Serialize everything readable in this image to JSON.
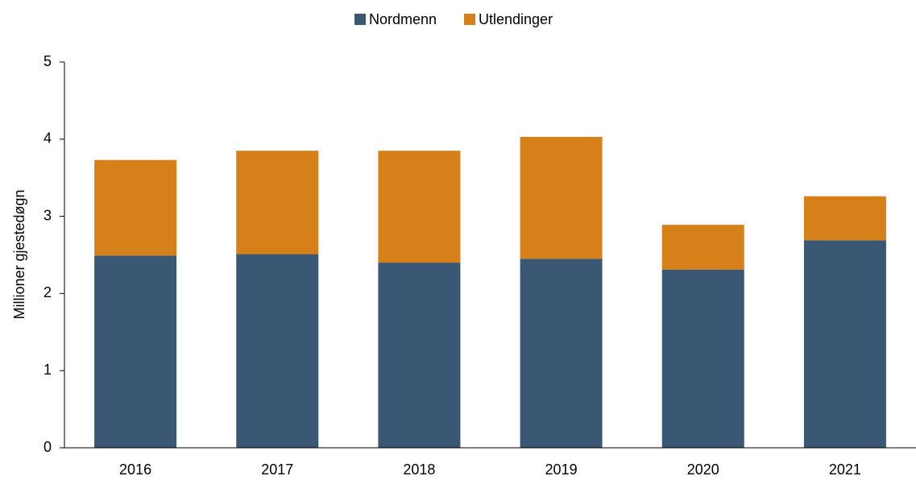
{
  "chart_data": {
    "type": "stacked_bar",
    "categories": [
      "2016",
      "2017",
      "2018",
      "2019",
      "2020",
      "2021"
    ],
    "series": [
      {
        "name": "Nordmenn",
        "color": "#3a5874",
        "values": [
          2.49,
          2.51,
          2.4,
          2.45,
          2.31,
          2.69
        ]
      },
      {
        "name": "Utlendinger",
        "color": "#d6801a",
        "values": [
          1.24,
          1.34,
          1.45,
          1.58,
          0.58,
          0.57
        ]
      }
    ],
    "y_label": "Millioner gjestedøgn",
    "ylim": [
      0,
      5
    ],
    "yticks": [
      0,
      1,
      2,
      3,
      4,
      5
    ],
    "legend": "top"
  }
}
